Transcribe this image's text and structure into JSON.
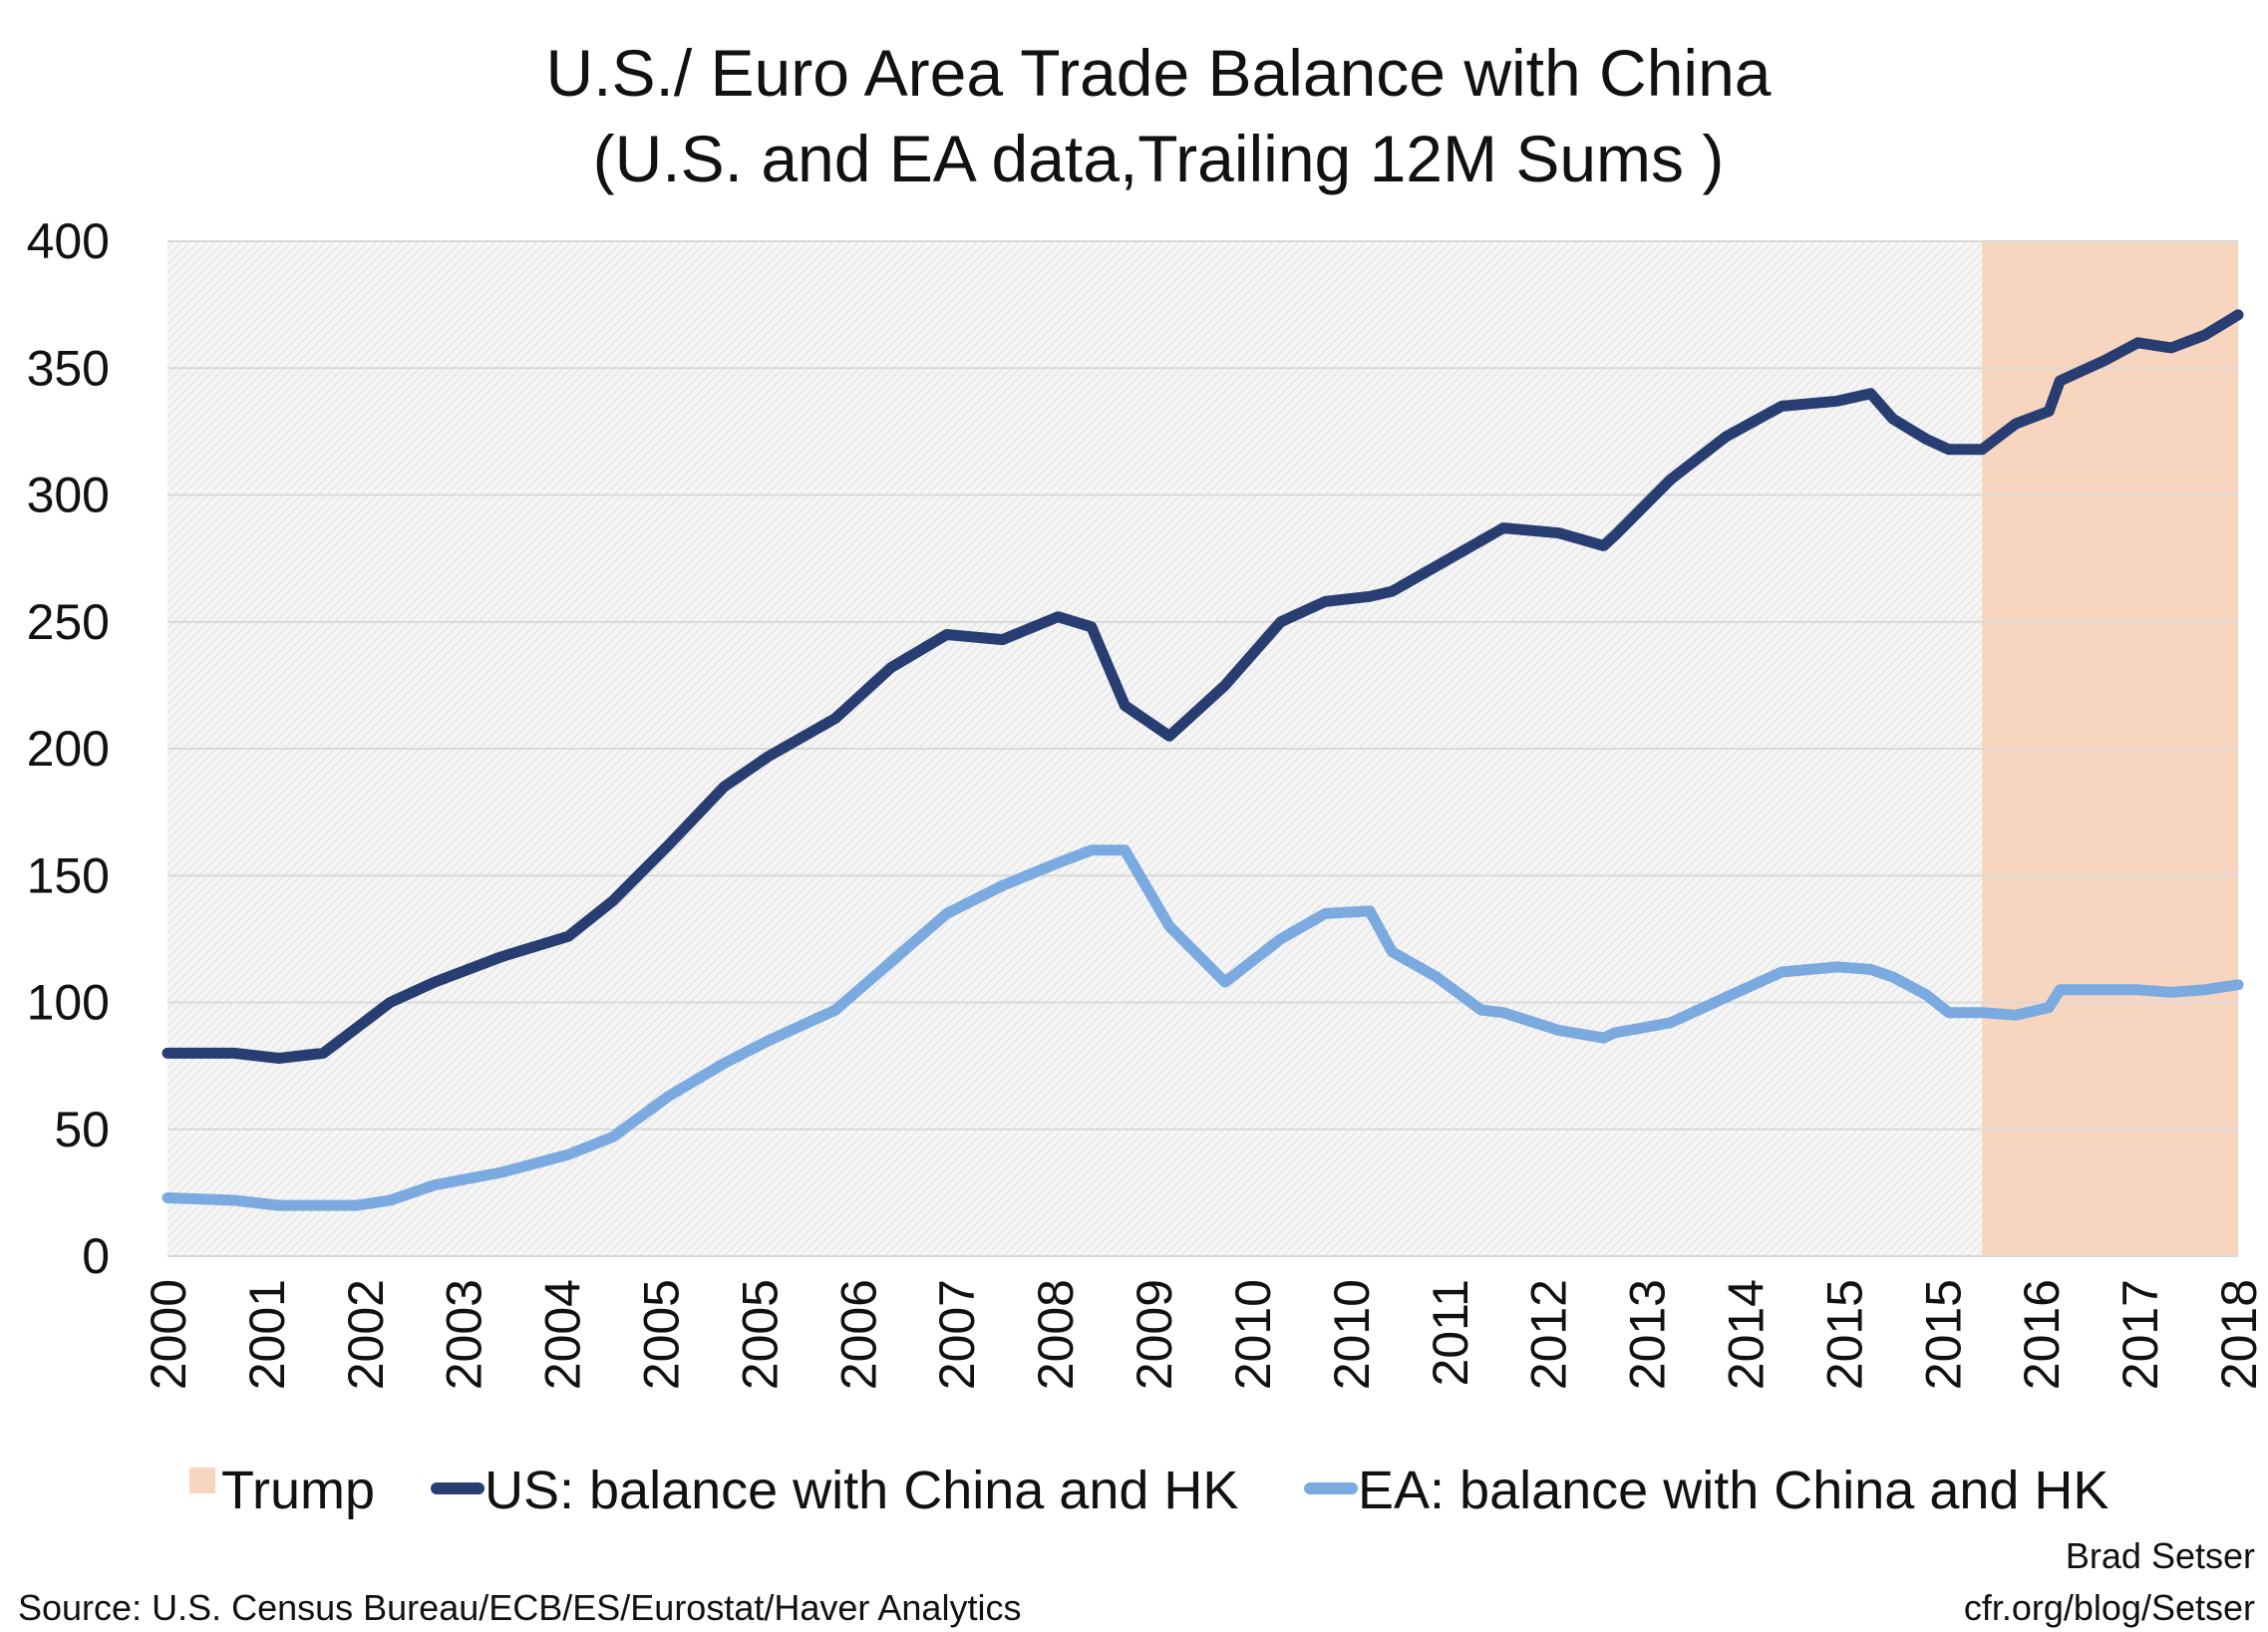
{
  "chart_data": {
    "type": "line",
    "title": "U.S./ Euro Area Trade Balance with China",
    "subtitle": "(U.S. and EA data,Trailing 12M Sums )",
    "xlabel": "",
    "ylabel": "",
    "ylim": [
      0,
      400
    ],
    "yticks": [
      0,
      50,
      100,
      150,
      200,
      250,
      300,
      350,
      400
    ],
    "x_tick_labels": [
      "2000",
      "2001",
      "2002",
      "2003",
      "2004",
      "2005",
      "2005",
      "2006",
      "2007",
      "2008",
      "2009",
      "2010",
      "2010",
      "2011",
      "2012",
      "2013",
      "2014",
      "2015",
      "2015",
      "2016",
      "2017",
      "2018"
    ],
    "x": [
      "2000",
      "2000.6",
      "2001",
      "2001.4",
      "2001.7",
      "2002",
      "2002.4",
      "2003",
      "2003.6",
      "2004",
      "2004.5",
      "2005",
      "2005.4",
      "2006",
      "2006.5",
      "2007",
      "2007.5",
      "2008",
      "2008.3",
      "2008.6",
      "2009",
      "2009.5",
      "2010",
      "2010.4",
      "2010.8",
      "2011",
      "2011.4",
      "2011.8",
      "2012",
      "2012.5",
      "2012.9",
      "2013",
      "2013.5",
      "2014",
      "2014.5",
      "2015",
      "2015.3",
      "2015.5",
      "2015.8",
      "2016",
      "2016.3",
      "2016.6",
      "2016.9",
      "2017",
      "2017.4",
      "2017.7",
      "2018",
      "2018.3",
      "2018.6"
    ],
    "series": [
      {
        "name": "US: balance with China and HK",
        "color": "#283e73",
        "values": [
          80,
          80,
          78,
          80,
          90,
          100,
          108,
          118,
          126,
          140,
          162,
          185,
          197,
          212,
          232,
          245,
          243,
          252,
          248,
          217,
          205,
          225,
          250,
          258,
          260,
          262,
          272,
          282,
          287,
          285,
          280,
          284,
          306,
          323,
          335,
          337,
          340,
          330,
          322,
          318,
          318,
          328,
          333,
          345,
          353,
          360,
          358,
          363,
          371
        ]
      },
      {
        "name": "EA: balance with China and HK",
        "color": "#7aaae0",
        "values": [
          23,
          22,
          20,
          20,
          20,
          22,
          28,
          33,
          40,
          47,
          63,
          76,
          85,
          97,
          116,
          135,
          146,
          155,
          160,
          160,
          130,
          108,
          125,
          135,
          136,
          120,
          110,
          97,
          96,
          89,
          86,
          88,
          92,
          102,
          112,
          114,
          113,
          110,
          103,
          96,
          96,
          95,
          98,
          105,
          105,
          105,
          104,
          105,
          107
        ]
      }
    ],
    "shaded_regions": [
      {
        "name": "Trump",
        "color": "#f8d5bf",
        "x_start": "2016.3",
        "x_end": "2018.6"
      }
    ],
    "grid": true,
    "legend_position": "bottom"
  },
  "legend": {
    "trump": "Trump",
    "us": "US: balance with China and HK",
    "ea": "EA: balance with China and HK"
  },
  "footer": {
    "source": "Source: U.S. Census Bureau/ECB/ES/Eurostat/Haver Analytics",
    "author": "Brad Setser",
    "site": "cfr.org/blog/Setser"
  },
  "colors": {
    "grid": "#d9d9d9",
    "plot_bg": "#f2f2f2",
    "hatch": "#dcdcdc"
  }
}
